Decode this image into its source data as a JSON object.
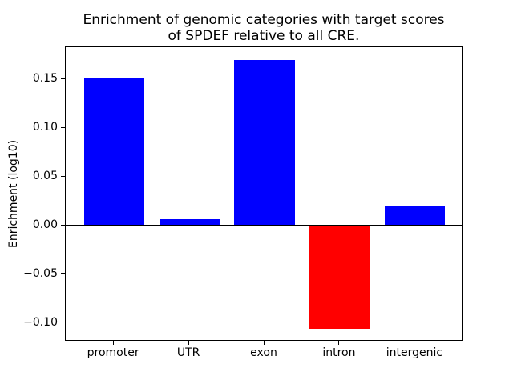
{
  "figure": {
    "title_display": "Enrichment of genomic categories with target scores\nof SPDEF relative to all CRE."
  },
  "chart_data": {
    "type": "bar",
    "title": "Enrichment of genomic categories with target scores of SPDEF relative to all CRE.",
    "ylabel": "Enrichment (log10)",
    "xlabel": "",
    "categories": [
      "promoter",
      "UTR",
      "exon",
      "intron",
      "intergenic"
    ],
    "values": [
      0.151,
      0.007,
      0.17,
      -0.106,
      0.02
    ],
    "bar_colors": [
      "#0000ff",
      "#0000ff",
      "#0000ff",
      "#ff0000",
      "#0000ff"
    ],
    "bar_width_fraction": 0.8,
    "yticks": [
      0.15,
      0.1,
      0.05,
      0.0,
      -0.05,
      -0.1
    ],
    "ytick_labels": [
      "0.15",
      "0.10",
      "0.05",
      "0.00",
      "−0.05",
      "−0.10"
    ],
    "ylim": [
      -0.119,
      0.183
    ],
    "xlim": [
      -0.64,
      4.64
    ],
    "grid": false,
    "legend": false,
    "zero_line": true,
    "colors": {
      "positive_bar": "#0000ff",
      "negative_bar": "#ff0000",
      "axis": "#000000",
      "background": "#ffffff",
      "text": "#000000"
    }
  }
}
